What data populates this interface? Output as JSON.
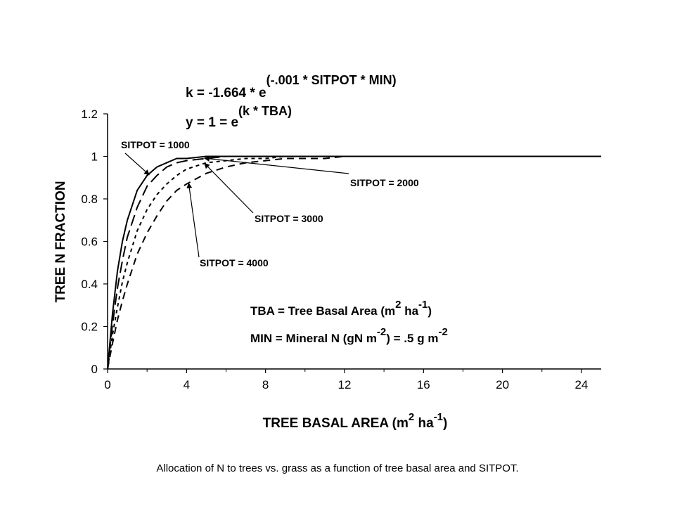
{
  "caption": "Allocation of N to trees vs. grass as a function of tree basal area and SITPOT.",
  "chart_data": {
    "type": "line",
    "xlabel": {
      "main": "TREE BASAL AREA (m",
      "sup1": "2",
      "mid": " ha",
      "sup2": "-1",
      "end": ")"
    },
    "ylabel": "TREE N FRACTION",
    "xlim": [
      0,
      25
    ],
    "ylim": [
      0,
      1.2
    ],
    "x_ticks": [
      "0",
      "4",
      "8",
      "12",
      "16",
      "20",
      "24"
    ],
    "y_ticks": [
      "0",
      "0.2",
      "0.4",
      "0.6",
      "0.8",
      "1",
      "1.2"
    ],
    "equations": {
      "k": {
        "base": "k = -1.664 * e",
        "exp": "(-.001 * SITPOT * MIN)"
      },
      "y": {
        "base": "y = 1 = e",
        "exp": "(k * TBA)"
      }
    },
    "notes": {
      "tba": {
        "base": "TBA = Tree Basal Area (m",
        "sup1": "2",
        "mid": " ha",
        "sup2": "-1",
        "end": ")"
      },
      "min": {
        "base": "MIN = Mineral N (gN m",
        "sup1": "-2",
        "mid": ") = .5 g m",
        "sup2": "-2"
      }
    },
    "x": [
      0,
      0.25,
      0.5,
      0.75,
      1,
      1.5,
      2,
      2.5,
      3,
      3.5,
      4,
      5,
      6,
      7,
      8,
      9,
      10,
      11,
      12,
      13,
      14,
      16,
      18,
      20,
      22,
      25
    ],
    "series": [
      {
        "name": "SITPOT = 1000",
        "sitpot": 1000,
        "dash": "solid",
        "values": [
          0,
          0.26,
          0.46,
          0.6,
          0.7,
          0.84,
          0.91,
          0.95,
          0.97,
          0.99,
          0.99,
          1.0,
          1.0,
          1.0,
          1.0,
          1.0,
          1.0,
          1.0,
          1.0,
          1.0,
          1.0,
          1.0,
          1.0,
          1.0,
          1.0,
          1.0
        ]
      },
      {
        "name": "SITPOT = 2000",
        "sitpot": 2000,
        "dash": "long",
        "values": [
          0,
          0.21,
          0.38,
          0.51,
          0.62,
          0.76,
          0.86,
          0.91,
          0.95,
          0.97,
          0.98,
          0.99,
          1.0,
          1.0,
          1.0,
          1.0,
          1.0,
          1.0,
          1.0,
          1.0,
          1.0,
          1.0,
          1.0,
          1.0,
          1.0,
          1.0
        ]
      },
      {
        "name": "SITPOT = 3000",
        "sitpot": 3000,
        "dash": "short",
        "values": [
          0,
          0.16,
          0.29,
          0.41,
          0.5,
          0.65,
          0.75,
          0.82,
          0.87,
          0.91,
          0.94,
          0.97,
          0.98,
          0.99,
          0.99,
          1.0,
          1.0,
          1.0,
          1.0,
          1.0,
          1.0,
          1.0,
          1.0,
          1.0,
          1.0,
          1.0
        ]
      },
      {
        "name": "SITPOT = 4000",
        "sitpot": 4000,
        "dash": "medium",
        "values": [
          0,
          0.12,
          0.23,
          0.32,
          0.4,
          0.54,
          0.64,
          0.72,
          0.79,
          0.84,
          0.87,
          0.92,
          0.95,
          0.97,
          0.98,
          0.99,
          0.99,
          0.99,
          1.0,
          1.0,
          1.0,
          1.0,
          1.0,
          1.0,
          1.0,
          1.0
        ]
      }
    ],
    "annotations": [
      {
        "text": "SITPOT = 1000",
        "series": 0,
        "at_x": 2
      },
      {
        "text": "SITPOT = 2000",
        "series": 1,
        "at_x": 4.8
      },
      {
        "text": "SITPOT = 3000",
        "series": 2,
        "at_x": 4.8
      },
      {
        "text": "SITPOT = 4000",
        "series": 3,
        "at_x": 4
      }
    ],
    "grid": false,
    "colors": {
      "line": "#000000",
      "background": "#ffffff"
    }
  }
}
